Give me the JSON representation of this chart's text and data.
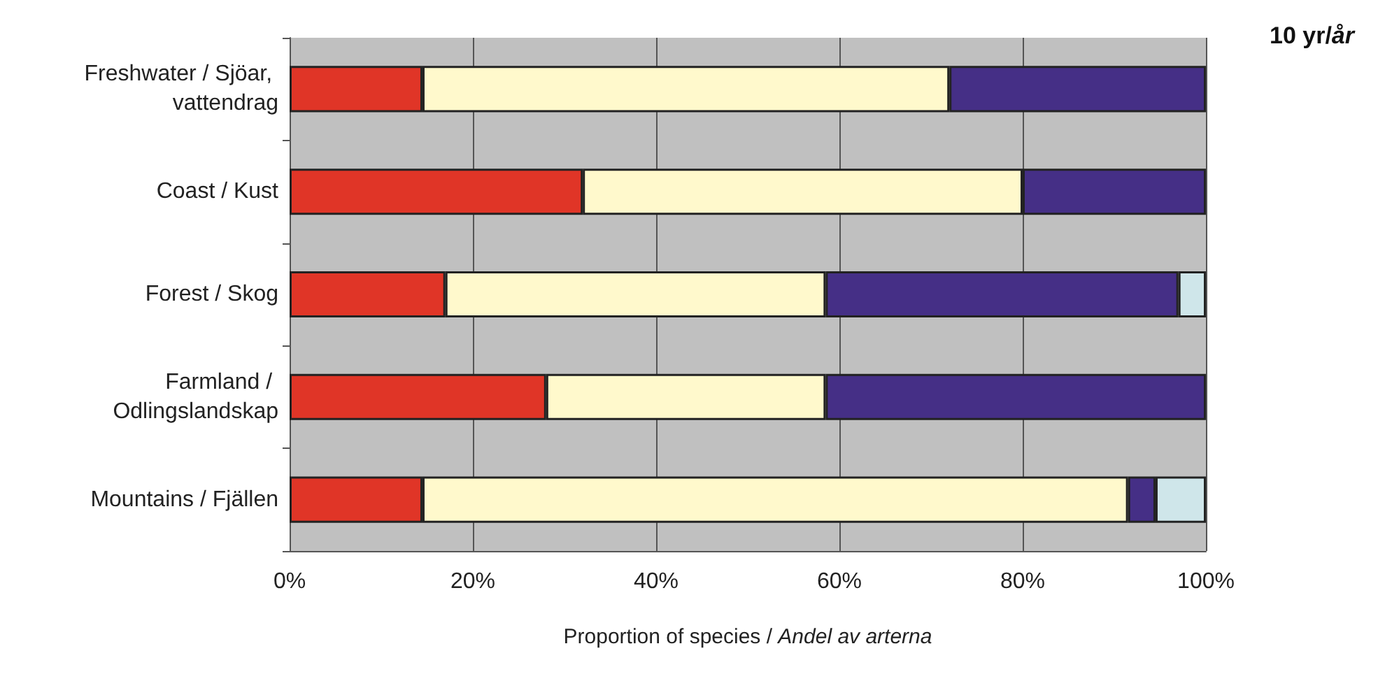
{
  "chart_data": {
    "type": "bar",
    "orientation": "horizontal",
    "stacked": true,
    "title": "10 yr/år",
    "xlabel": "Proportion of species / Andel av arterna",
    "categories": [
      "Freshwater / Sjöar, vattendrag",
      "Coast / Kust",
      "Forest / Skog",
      "Farmland / Odlingslandskap",
      "Mountains / Fjällen"
    ],
    "series": [
      {
        "color": "#e03527",
        "values": [
          14.5,
          32,
          17,
          28,
          14.5
        ]
      },
      {
        "color": "#fff9cc",
        "values": [
          57.5,
          48,
          41.5,
          30.5,
          77
        ]
      },
      {
        "color": "#452f86",
        "values": [
          28,
          20,
          38.5,
          41.5,
          3
        ]
      },
      {
        "color": "#cfe6ea",
        "values": [
          0,
          0,
          3,
          0,
          5.5
        ]
      }
    ],
    "xlim": [
      0,
      100
    ],
    "xticks": [
      {
        "value": 0,
        "label": "0%"
      },
      {
        "value": 20,
        "label": "20%"
      },
      {
        "value": 40,
        "label": "40%"
      },
      {
        "value": 60,
        "label": "60%"
      },
      {
        "value": 80,
        "label": "80%"
      },
      {
        "value": 100,
        "label": "100%"
      }
    ],
    "grid": "x"
  }
}
